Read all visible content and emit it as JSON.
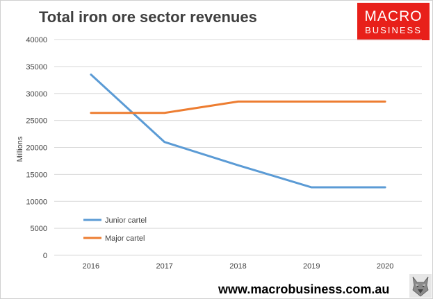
{
  "chart_data": {
    "type": "line",
    "title": "Total iron ore sector revenues",
    "ylabel": "Millions",
    "xlabel": "",
    "categories": [
      "2016",
      "2017",
      "2018",
      "2019",
      "2020"
    ],
    "ylim": [
      0,
      40000
    ],
    "yticks": [
      0,
      5000,
      10000,
      15000,
      20000,
      25000,
      30000,
      35000,
      40000
    ],
    "grid": true,
    "legend_position": "bottom-left",
    "series": [
      {
        "name": "Junior cartel",
        "color": "#5b9bd5",
        "values": [
          33500,
          21000,
          16700,
          12600,
          12600
        ]
      },
      {
        "name": "Major cartel",
        "color": "#ed7d31",
        "values": [
          26400,
          26400,
          28500,
          28500,
          28500
        ]
      }
    ]
  },
  "branding": {
    "logo_top": "MACRO",
    "logo_bottom": "BUSINESS",
    "logo_color": "#e8201a",
    "mascot_icon": "wolf-icon",
    "website": "www.macrobusiness.com.au"
  }
}
